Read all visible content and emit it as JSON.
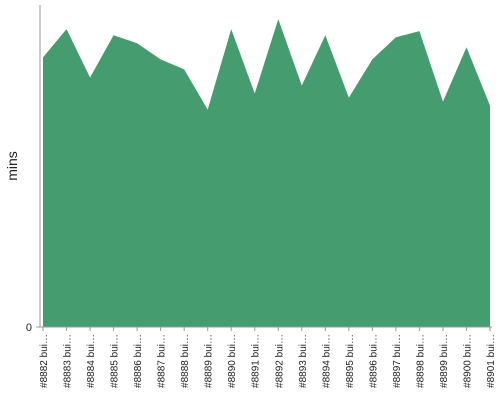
{
  "chart_data": {
    "type": "area",
    "ylabel": "mins",
    "color": "#459c6e",
    "categories": [
      "#8882 bui…",
      "#8883 bui…",
      "#8884 bui…",
      "#8885 bui…",
      "#8886 bui…",
      "#8887 bui…",
      "#8888 bui…",
      "#8889 bui…",
      "#8890 bui…",
      "#8891 bui…",
      "#8892 bui…",
      "#8893 bui…",
      "#8894 bui…",
      "#8895 bui…",
      "#8896 bui…",
      "#8897 bui…",
      "#8898 bui…",
      "#8899 bui…",
      "#8900 bui…",
      "#8901 bui…"
    ],
    "values": [
      13.4,
      14.8,
      12.4,
      14.5,
      14.1,
      13.3,
      12.8,
      10.8,
      14.8,
      11.6,
      15.3,
      12.0,
      14.5,
      11.4,
      13.3,
      14.4,
      14.7,
      11.2,
      13.9,
      11.0
    ],
    "ylim": [
      0,
      16
    ],
    "yticks": [
      0
    ]
  }
}
